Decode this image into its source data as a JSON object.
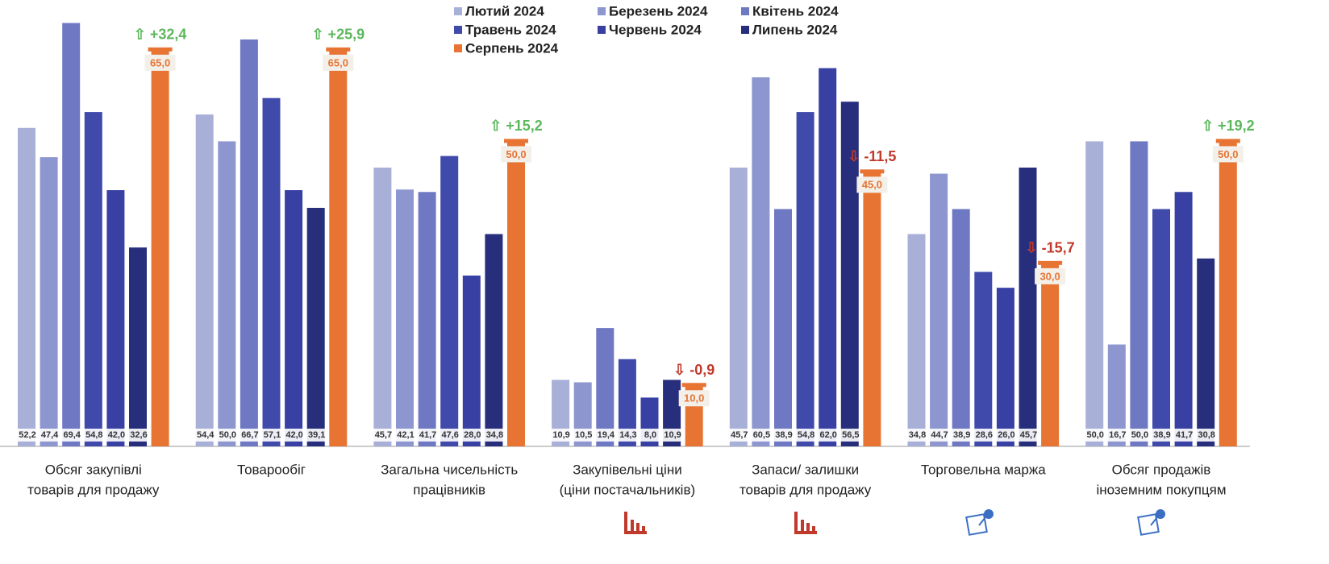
{
  "chart_data": {
    "type": "bar",
    "categories": [
      [
        "Обсяг закупівлі",
        "товарів для продажу"
      ],
      [
        "Товарообіг"
      ],
      [
        "Загальна чисельність",
        "працівників"
      ],
      [
        "Закупівельні ціни",
        "(ціни постачальників)"
      ],
      [
        "Запаси/ залишки",
        "товарів для продажу"
      ],
      [
        "Торговельна маржа"
      ],
      [
        "Обсяг продажів",
        "іноземним покупцям"
      ]
    ],
    "ylim": [
      0,
      70
    ],
    "series": [
      {
        "name": "Лютий 2024",
        "color": "#a9b0d8",
        "values": [
          52.2,
          54.4,
          45.7,
          10.9,
          45.7,
          34.8,
          50.0
        ],
        "value_labels": [
          "52,2",
          "54,4",
          "45,7",
          "10,9",
          "45,7",
          "34,8",
          "50,0"
        ]
      },
      {
        "name": "Березень 2024",
        "color": "#8d96cf",
        "values": [
          47.4,
          50.0,
          42.1,
          10.5,
          60.5,
          44.7,
          16.7
        ],
        "value_labels": [
          "47,4",
          "50,0",
          "42,1",
          "10,5",
          "60,5",
          "44,7",
          "16,7"
        ]
      },
      {
        "name": "Квітень 2024",
        "color": "#6f78c2",
        "values": [
          69.4,
          66.7,
          41.7,
          19.4,
          38.9,
          38.9,
          50.0
        ],
        "value_labels": [
          "69,4",
          "66,7",
          "41,7",
          "19,4",
          "38,9",
          "38,9",
          "50,0"
        ]
      },
      {
        "name": "Травень 2024",
        "color": "#3f4aab",
        "values": [
          54.8,
          57.1,
          47.6,
          14.3,
          54.8,
          28.6,
          38.9
        ],
        "value_labels": [
          "54,8",
          "57,1",
          "47,6",
          "14,3",
          "54,8",
          "28,6",
          "38,9"
        ]
      },
      {
        "name": "Червень 2024",
        "color": "#3841a3",
        "values": [
          42.0,
          42.0,
          28.0,
          8.0,
          62.0,
          26.0,
          41.7
        ],
        "value_labels": [
          "42,0",
          "42,0",
          "28,0",
          "8,0",
          "62,0",
          "26,0",
          "41,7"
        ]
      },
      {
        "name": "Липень 2024",
        "color": "#272f7c",
        "values": [
          32.6,
          39.1,
          34.8,
          10.9,
          56.5,
          45.7,
          30.8
        ],
        "value_labels": [
          "32,6",
          "39,1",
          "34,8",
          "10,9",
          "56,5",
          "45,7",
          "30,8"
        ]
      },
      {
        "name": "Серпень 2024",
        "color": "#e87433",
        "values": [
          65.0,
          65.0,
          50.0,
          10.0,
          45.0,
          30.0,
          50.0
        ],
        "value_labels": [
          "65,0",
          "65,0",
          "50,0",
          "10,0",
          "45,0",
          "30,0",
          "50,0"
        ]
      }
    ],
    "changes": [
      32.4,
      25.9,
      15.2,
      -0.9,
      -11.5,
      -15.7,
      19.2
    ],
    "change_labels": [
      "⇧ +32,4",
      "⇧ +25,9",
      "⇧ +15,2",
      "⇩ -0,9",
      "⇩ -11,5",
      "⇩ -15,7",
      "⇧ +19,2"
    ],
    "up_color": "#5cb85c",
    "down_color": "#c0392b"
  }
}
